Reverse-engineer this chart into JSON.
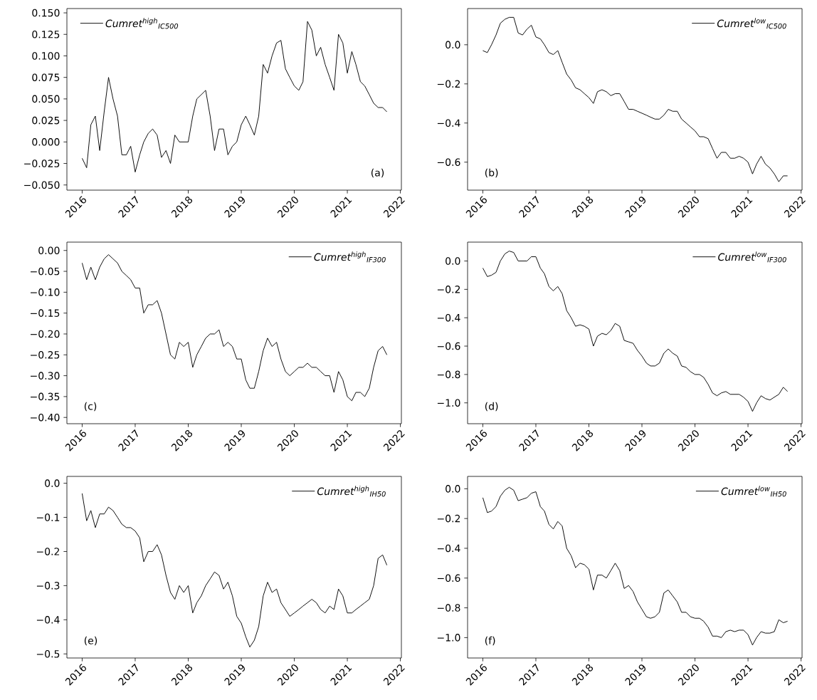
{
  "chart_data": [
    {
      "type": "line",
      "x": [
        "2016-01",
        "2016-02",
        "2016-03",
        "2016-04",
        "2016-05",
        "2016-06",
        "2016-07",
        "2016-08",
        "2016-09",
        "2016-10",
        "2016-11",
        "2016-12",
        "2017-01",
        "2017-02",
        "2017-03",
        "2017-04",
        "2017-05",
        "2017-06",
        "2017-07",
        "2017-08",
        "2017-09",
        "2017-10",
        "2017-11",
        "2017-12",
        "2018-01",
        "2018-02",
        "2018-03",
        "2018-04",
        "2018-05",
        "2018-06",
        "2018-07",
        "2018-08",
        "2018-09",
        "2018-10",
        "2018-11",
        "2018-12",
        "2019-01",
        "2019-02",
        "2019-03",
        "2019-04",
        "2019-05",
        "2019-06",
        "2019-07",
        "2019-08",
        "2019-09",
        "2019-10",
        "2019-11",
        "2019-12",
        "2020-01",
        "2020-02",
        "2020-03",
        "2020-04",
        "2020-05",
        "2020-06",
        "2020-07",
        "2020-08",
        "2020-09",
        "2020-10",
        "2020-11",
        "2020-12",
        "2021-01",
        "2021-02",
        "2021-03",
        "2021-04",
        "2021-05",
        "2021-06",
        "2021-07",
        "2021-08",
        "2021-09",
        "2021-09-30"
      ],
      "series": [
        {
          "name": "Cumret$^{high}$$_{IC500}$",
          "color": "#000000",
          "values": [
            -0.019,
            -0.03,
            0.02,
            0.03,
            -0.01,
            0.035,
            0.075,
            0.05,
            0.03,
            -0.015,
            -0.015,
            -0.005,
            -0.035,
            -0.015,
            0.0,
            0.01,
            0.015,
            0.008,
            -0.018,
            -0.01,
            -0.025,
            0.008,
            0.0,
            0.0,
            0.0,
            0.03,
            0.05,
            0.055,
            0.06,
            0.03,
            -0.01,
            0.015,
            0.015,
            -0.015,
            -0.005,
            0.0,
            0.02,
            0.03,
            0.02,
            0.008,
            0.03,
            0.09,
            0.08,
            0.1,
            0.115,
            0.118,
            0.085,
            0.075,
            0.065,
            0.06,
            0.07,
            0.14,
            0.13,
            0.1,
            0.11,
            0.09,
            0.075,
            0.06,
            0.125,
            0.115,
            0.08,
            0.105,
            0.09,
            0.07,
            0.065,
            0.055,
            0.045,
            0.04,
            0.04,
            0.035
          ]
        }
      ],
      "xlim": [
        "2015-09-18",
        "2022-01-08"
      ],
      "xticks": [
        "2016",
        "2017",
        "2018",
        "2019",
        "2020",
        "2021",
        "2022"
      ],
      "ylim": [
        -0.056,
        0.155
      ],
      "yticks": [
        {
          "value": -0.05,
          "label": "−0.050"
        },
        {
          "value": -0.025,
          "label": "−0.025"
        },
        {
          "value": 0,
          "label": "0.000"
        },
        {
          "value": 0.025,
          "label": "0.025"
        },
        {
          "value": 0.05,
          "label": "0.050"
        },
        {
          "value": 0.075,
          "label": "0.075"
        },
        {
          "value": 0.1,
          "label": "0.100"
        },
        {
          "value": 0.125,
          "label": "0.125"
        },
        {
          "value": 0.15,
          "label": "0.150"
        }
      ],
      "legend": "top left",
      "annotations": [
        "(a)"
      ]
    },
    {
      "type": "line",
      "x": [
        "2016-01",
        "2016-02",
        "2016-03",
        "2016-04",
        "2016-05",
        "2016-06",
        "2016-07",
        "2016-08",
        "2016-09",
        "2016-10",
        "2016-11",
        "2016-12",
        "2017-01",
        "2017-02",
        "2017-03",
        "2017-04",
        "2017-05",
        "2017-06",
        "2017-07",
        "2017-08",
        "2017-09",
        "2017-10",
        "2017-11",
        "2017-12",
        "2018-01",
        "2018-02",
        "2018-03",
        "2018-04",
        "2018-05",
        "2018-06",
        "2018-07",
        "2018-08",
        "2018-09",
        "2018-10",
        "2018-11",
        "2018-12",
        "2019-01",
        "2019-02",
        "2019-03",
        "2019-04",
        "2019-05",
        "2019-06",
        "2019-07",
        "2019-08",
        "2019-09",
        "2019-10",
        "2019-11",
        "2019-12",
        "2020-01",
        "2020-02",
        "2020-03",
        "2020-04",
        "2020-05",
        "2020-06",
        "2020-07",
        "2020-08",
        "2020-09",
        "2020-10",
        "2020-11",
        "2020-12",
        "2021-01",
        "2021-02",
        "2021-03",
        "2021-04",
        "2021-05",
        "2021-06",
        "2021-07",
        "2021-08",
        "2021-09",
        "2021-09-30"
      ],
      "series": [
        {
          "name": "Cumret$^{low}$$_{IC500}$",
          "color": "#000000",
          "values": [
            -0.03,
            -0.04,
            0.0,
            0.05,
            0.11,
            0.13,
            0.14,
            0.14,
            0.06,
            0.05,
            0.08,
            0.1,
            0.04,
            0.03,
            0.0,
            -0.04,
            -0.05,
            -0.03,
            -0.09,
            -0.15,
            -0.18,
            -0.22,
            -0.23,
            -0.25,
            -0.27,
            -0.3,
            -0.24,
            -0.23,
            -0.24,
            -0.26,
            -0.25,
            -0.25,
            -0.29,
            -0.33,
            -0.33,
            -0.34,
            -0.35,
            -0.36,
            -0.37,
            -0.38,
            -0.38,
            -0.36,
            -0.33,
            -0.34,
            -0.34,
            -0.38,
            -0.4,
            -0.42,
            -0.44,
            -0.47,
            -0.47,
            -0.48,
            -0.53,
            -0.58,
            -0.55,
            -0.55,
            -0.58,
            -0.58,
            -0.57,
            -0.58,
            -0.6,
            -0.66,
            -0.61,
            -0.57,
            -0.61,
            -0.63,
            -0.66,
            -0.7,
            -0.67,
            -0.67
          ]
        }
      ],
      "xlim": [
        "2015-09-18",
        "2022-01-08"
      ],
      "xticks": [
        "2016",
        "2017",
        "2018",
        "2019",
        "2020",
        "2021",
        "2022"
      ],
      "ylim": [
        -0.743,
        0.185
      ],
      "yticks": [
        {
          "value": -0.6,
          "label": "−0.6"
        },
        {
          "value": -0.4,
          "label": "−0.4"
        },
        {
          "value": -0.2,
          "label": "−0.2"
        },
        {
          "value": 0,
          "label": "0.0"
        }
      ],
      "legend": "top right",
      "annotations": [
        "(b)"
      ]
    },
    {
      "type": "line",
      "x": [
        "2016-01",
        "2016-02",
        "2016-03",
        "2016-04",
        "2016-05",
        "2016-06",
        "2016-07",
        "2016-08",
        "2016-09",
        "2016-10",
        "2016-11",
        "2016-12",
        "2017-01",
        "2017-02",
        "2017-03",
        "2017-04",
        "2017-05",
        "2017-06",
        "2017-07",
        "2017-08",
        "2017-09",
        "2017-10",
        "2017-11",
        "2017-12",
        "2018-01",
        "2018-02",
        "2018-03",
        "2018-04",
        "2018-05",
        "2018-06",
        "2018-07",
        "2018-08",
        "2018-09",
        "2018-10",
        "2018-11",
        "2018-12",
        "2019-01",
        "2019-02",
        "2019-03",
        "2019-04",
        "2019-05",
        "2019-06",
        "2019-07",
        "2019-08",
        "2019-09",
        "2019-10",
        "2019-11",
        "2019-12",
        "2020-01",
        "2020-02",
        "2020-03",
        "2020-04",
        "2020-05",
        "2020-06",
        "2020-07",
        "2020-08",
        "2020-09",
        "2020-10",
        "2020-11",
        "2020-12",
        "2021-01",
        "2021-02",
        "2021-03",
        "2021-04",
        "2021-05",
        "2021-06",
        "2021-07",
        "2021-08",
        "2021-09",
        "2021-09-30"
      ],
      "series": [
        {
          "name": "Cumret$^{high}$$_{IF300}$",
          "color": "#000000",
          "values": [
            -0.03,
            -0.07,
            -0.04,
            -0.07,
            -0.04,
            -0.02,
            -0.01,
            -0.02,
            -0.03,
            -0.05,
            -0.06,
            -0.07,
            -0.09,
            -0.09,
            -0.15,
            -0.13,
            -0.13,
            -0.12,
            -0.15,
            -0.2,
            -0.25,
            -0.26,
            -0.22,
            -0.23,
            -0.22,
            -0.28,
            -0.25,
            -0.23,
            -0.21,
            -0.2,
            -0.2,
            -0.19,
            -0.23,
            -0.22,
            -0.23,
            -0.26,
            -0.26,
            -0.31,
            -0.33,
            -0.33,
            -0.29,
            -0.24,
            -0.21,
            -0.23,
            -0.22,
            -0.26,
            -0.29,
            -0.3,
            -0.29,
            -0.28,
            -0.28,
            -0.27,
            -0.28,
            -0.28,
            -0.29,
            -0.3,
            -0.3,
            -0.34,
            -0.29,
            -0.31,
            -0.35,
            -0.36,
            -0.34,
            -0.34,
            -0.35,
            -0.33,
            -0.28,
            -0.24,
            -0.23,
            -0.25
          ]
        }
      ],
      "xlim": [
        "2015-09-18",
        "2022-01-08"
      ],
      "xticks": [
        "2016",
        "2017",
        "2018",
        "2019",
        "2020",
        "2021",
        "2022"
      ],
      "ylim": [
        -0.415,
        0.02
      ],
      "yticks": [
        {
          "value": -0.4,
          "label": "−0.40"
        },
        {
          "value": -0.35,
          "label": "−0.35"
        },
        {
          "value": -0.3,
          "label": "−0.30"
        },
        {
          "value": -0.25,
          "label": "−0.25"
        },
        {
          "value": -0.2,
          "label": "−0.20"
        },
        {
          "value": -0.15,
          "label": "−0.15"
        },
        {
          "value": -0.1,
          "label": "−0.10"
        },
        {
          "value": -0.05,
          "label": "−0.05"
        },
        {
          "value": 0,
          "label": "0.00"
        }
      ],
      "legend": "top right",
      "annotations": [
        "(c)"
      ]
    },
    {
      "type": "line",
      "x": [
        "2016-01",
        "2016-02",
        "2016-03",
        "2016-04",
        "2016-05",
        "2016-06",
        "2016-07",
        "2016-08",
        "2016-09",
        "2016-10",
        "2016-11",
        "2016-12",
        "2017-01",
        "2017-02",
        "2017-03",
        "2017-04",
        "2017-05",
        "2017-06",
        "2017-07",
        "2017-08",
        "2017-09",
        "2017-10",
        "2017-11",
        "2017-12",
        "2018-01",
        "2018-02",
        "2018-03",
        "2018-04",
        "2018-05",
        "2018-06",
        "2018-07",
        "2018-08",
        "2018-09",
        "2018-10",
        "2018-11",
        "2018-12",
        "2019-01",
        "2019-02",
        "2019-03",
        "2019-04",
        "2019-05",
        "2019-06",
        "2019-07",
        "2019-08",
        "2019-09",
        "2019-10",
        "2019-11",
        "2019-12",
        "2020-01",
        "2020-02",
        "2020-03",
        "2020-04",
        "2020-05",
        "2020-06",
        "2020-07",
        "2020-08",
        "2020-09",
        "2020-10",
        "2020-11",
        "2020-12",
        "2021-01",
        "2021-02",
        "2021-03",
        "2021-04",
        "2021-05",
        "2021-06",
        "2021-07",
        "2021-08",
        "2021-09",
        "2021-09-30"
      ],
      "series": [
        {
          "name": "Cumret$^{low}$$_{IF300}$",
          "color": "#000000",
          "values": [
            -0.05,
            -0.11,
            -0.1,
            -0.08,
            0.0,
            0.05,
            0.07,
            0.06,
            0.0,
            0.0,
            0.0,
            0.03,
            0.03,
            -0.05,
            -0.09,
            -0.18,
            -0.21,
            -0.18,
            -0.23,
            -0.35,
            -0.4,
            -0.46,
            -0.45,
            -0.46,
            -0.48,
            -0.6,
            -0.53,
            -0.51,
            -0.52,
            -0.49,
            -0.44,
            -0.46,
            -0.56,
            -0.57,
            -0.58,
            -0.63,
            -0.67,
            -0.72,
            -0.74,
            -0.74,
            -0.72,
            -0.65,
            -0.62,
            -0.65,
            -0.67,
            -0.74,
            -0.75,
            -0.78,
            -0.8,
            -0.8,
            -0.82,
            -0.87,
            -0.93,
            -0.95,
            -0.93,
            -0.92,
            -0.94,
            -0.94,
            -0.94,
            -0.96,
            -0.99,
            -1.06,
            -1.0,
            -0.95,
            -0.97,
            -0.98,
            -0.96,
            -0.94,
            -0.89,
            -0.92
          ]
        }
      ],
      "xlim": [
        "2015-09-18",
        "2022-01-08"
      ],
      "xticks": [
        "2016",
        "2017",
        "2018",
        "2019",
        "2020",
        "2021",
        "2022"
      ],
      "ylim": [
        -1.147,
        0.133
      ],
      "yticks": [
        {
          "value": -1.0,
          "label": "−1.0"
        },
        {
          "value": -0.8,
          "label": "−0.8"
        },
        {
          "value": -0.6,
          "label": "−0.6"
        },
        {
          "value": -0.4,
          "label": "−0.4"
        },
        {
          "value": -0.2,
          "label": "−0.2"
        },
        {
          "value": 0,
          "label": "0.0"
        }
      ],
      "legend": "top right",
      "annotations": [
        "(d)"
      ]
    },
    {
      "type": "line",
      "x": [
        "2016-01",
        "2016-02",
        "2016-03",
        "2016-04",
        "2016-05",
        "2016-06",
        "2016-07",
        "2016-08",
        "2016-09",
        "2016-10",
        "2016-11",
        "2016-12",
        "2017-01",
        "2017-02",
        "2017-03",
        "2017-04",
        "2017-05",
        "2017-06",
        "2017-07",
        "2017-08",
        "2017-09",
        "2017-10",
        "2017-11",
        "2017-12",
        "2018-01",
        "2018-02",
        "2018-03",
        "2018-04",
        "2018-05",
        "2018-06",
        "2018-07",
        "2018-08",
        "2018-09",
        "2018-10",
        "2018-11",
        "2018-12",
        "2019-01",
        "2019-02",
        "2019-03",
        "2019-04",
        "2019-05",
        "2019-06",
        "2019-07",
        "2019-08",
        "2019-09",
        "2019-10",
        "2019-11",
        "2019-12",
        "2020-01",
        "2020-02",
        "2020-03",
        "2020-04",
        "2020-05",
        "2020-06",
        "2020-07",
        "2020-08",
        "2020-09",
        "2020-10",
        "2020-11",
        "2020-12",
        "2021-01",
        "2021-02",
        "2021-03",
        "2021-04",
        "2021-05",
        "2021-06",
        "2021-07",
        "2021-08",
        "2021-09",
        "2021-09-30"
      ],
      "series": [
        {
          "name": "Cumret$^{high}$$_{IH50}$",
          "color": "#000000",
          "values": [
            -0.03,
            -0.11,
            -0.08,
            -0.13,
            -0.09,
            -0.09,
            -0.07,
            -0.08,
            -0.1,
            -0.12,
            -0.13,
            -0.13,
            -0.14,
            -0.16,
            -0.23,
            -0.2,
            -0.2,
            -0.18,
            -0.21,
            -0.27,
            -0.32,
            -0.34,
            -0.3,
            -0.32,
            -0.3,
            -0.38,
            -0.35,
            -0.33,
            -0.3,
            -0.28,
            -0.26,
            -0.27,
            -0.31,
            -0.29,
            -0.33,
            -0.39,
            -0.41,
            -0.45,
            -0.48,
            -0.46,
            -0.42,
            -0.33,
            -0.29,
            -0.32,
            -0.31,
            -0.35,
            -0.37,
            -0.39,
            -0.38,
            -0.37,
            -0.36,
            -0.35,
            -0.34,
            -0.35,
            -0.37,
            -0.38,
            -0.36,
            -0.37,
            -0.31,
            -0.33,
            -0.38,
            -0.38,
            -0.37,
            -0.36,
            -0.35,
            -0.34,
            -0.3,
            -0.22,
            -0.21,
            -0.24
          ]
        }
      ],
      "xlim": [
        "2015-09-18",
        "2022-01-08"
      ],
      "xticks": [
        "2016",
        "2017",
        "2018",
        "2019",
        "2020",
        "2021",
        "2022"
      ],
      "ylim": [
        -0.512,
        0.02
      ],
      "yticks": [
        {
          "value": -0.5,
          "label": "−0.5"
        },
        {
          "value": -0.4,
          "label": "−0.4"
        },
        {
          "value": -0.3,
          "label": "−0.3"
        },
        {
          "value": -0.2,
          "label": "−0.2"
        },
        {
          "value": -0.1,
          "label": "−0.1"
        },
        {
          "value": 0,
          "label": "0.0"
        }
      ],
      "legend": "top right",
      "annotations": [
        "(e)"
      ]
    },
    {
      "type": "line",
      "x": [
        "2016-01",
        "2016-02",
        "2016-03",
        "2016-04",
        "2016-05",
        "2016-06",
        "2016-07",
        "2016-08",
        "2016-09",
        "2016-10",
        "2016-11",
        "2016-12",
        "2017-01",
        "2017-02",
        "2017-03",
        "2017-04",
        "2017-05",
        "2017-06",
        "2017-07",
        "2017-08",
        "2017-09",
        "2017-10",
        "2017-11",
        "2017-12",
        "2018-01",
        "2018-02",
        "2018-03",
        "2018-04",
        "2018-05",
        "2018-06",
        "2018-07",
        "2018-08",
        "2018-09",
        "2018-10",
        "2018-11",
        "2018-12",
        "2019-01",
        "2019-02",
        "2019-03",
        "2019-04",
        "2019-05",
        "2019-06",
        "2019-07",
        "2019-08",
        "2019-09",
        "2019-10",
        "2019-11",
        "2019-12",
        "2020-01",
        "2020-02",
        "2020-03",
        "2020-04",
        "2020-05",
        "2020-06",
        "2020-07",
        "2020-08",
        "2020-09",
        "2020-10",
        "2020-11",
        "2020-12",
        "2021-01",
        "2021-02",
        "2021-03",
        "2021-04",
        "2021-05",
        "2021-06",
        "2021-07",
        "2021-08",
        "2021-09",
        "2021-09-30"
      ],
      "series": [
        {
          "name": "Cumret$^{low}$$_{IH50}$",
          "color": "#000000",
          "values": [
            -0.06,
            -0.16,
            -0.15,
            -0.12,
            -0.05,
            -0.01,
            0.01,
            -0.01,
            -0.08,
            -0.07,
            -0.06,
            -0.03,
            -0.02,
            -0.12,
            -0.15,
            -0.24,
            -0.27,
            -0.22,
            -0.25,
            -0.4,
            -0.45,
            -0.53,
            -0.5,
            -0.51,
            -0.54,
            -0.68,
            -0.58,
            -0.58,
            -0.6,
            -0.55,
            -0.5,
            -0.55,
            -0.67,
            -0.65,
            -0.69,
            -0.76,
            -0.81,
            -0.86,
            -0.87,
            -0.86,
            -0.83,
            -0.7,
            -0.68,
            -0.72,
            -0.76,
            -0.83,
            -0.83,
            -0.86,
            -0.87,
            -0.87,
            -0.89,
            -0.93,
            -0.99,
            -0.99,
            -1.0,
            -0.96,
            -0.95,
            -0.96,
            -0.95,
            -0.95,
            -0.98,
            -1.05,
            -1.0,
            -0.96,
            -0.97,
            -0.97,
            -0.96,
            -0.88,
            -0.9,
            -0.89
          ]
        }
      ],
      "xlim": [
        "2015-09-18",
        "2022-01-08"
      ],
      "xticks": [
        "2016",
        "2017",
        "2018",
        "2019",
        "2020",
        "2021",
        "2022"
      ],
      "ylim": [
        -1.137,
        0.083
      ],
      "yticks": [
        {
          "value": -1.0,
          "label": "−1.0"
        },
        {
          "value": -0.8,
          "label": "−0.8"
        },
        {
          "value": -0.6,
          "label": "−0.6"
        },
        {
          "value": -0.4,
          "label": "−0.4"
        },
        {
          "value": -0.2,
          "label": "−0.2"
        },
        {
          "value": 0,
          "label": "0.0"
        }
      ],
      "legend": "top right",
      "annotations": [
        "(f)"
      ]
    }
  ]
}
